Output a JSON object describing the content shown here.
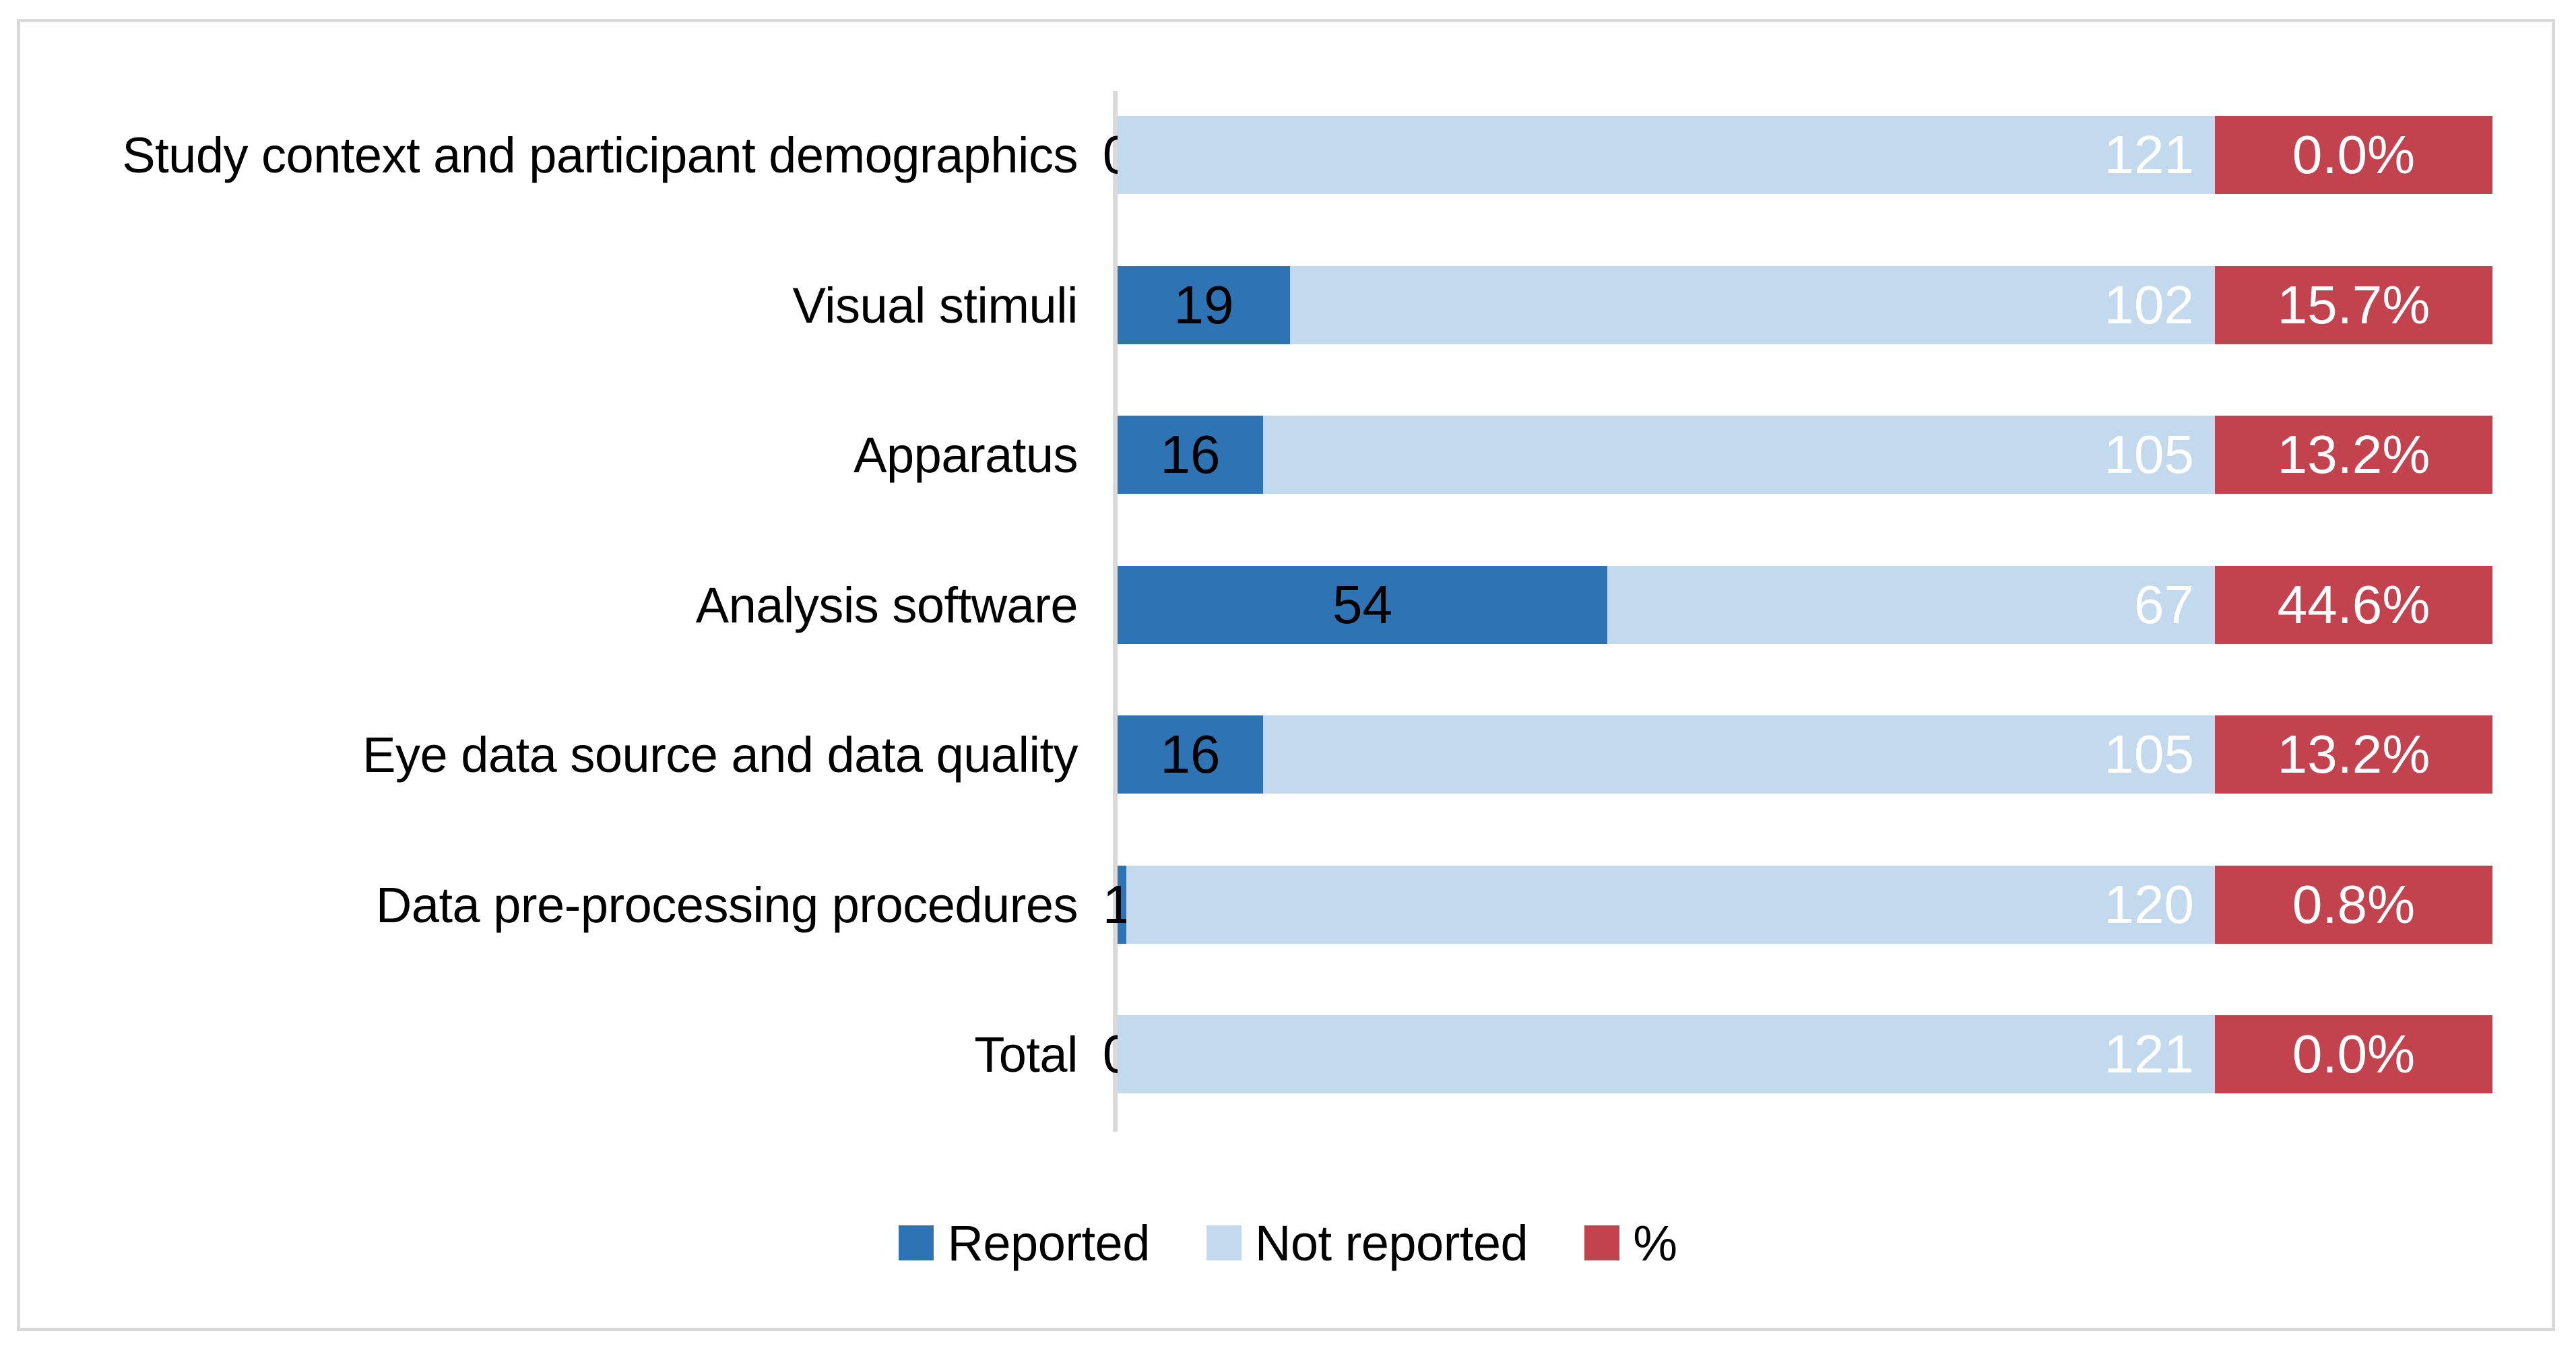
{
  "chart_data": {
    "type": "bar",
    "orientation": "horizontal",
    "stacked": true,
    "title": "",
    "categories": [
      "Study context and participant demographics",
      "Visual stimuli",
      "Apparatus",
      "Analysis software",
      "Eye data source and data quality",
      "Data pre-processing procedures",
      "Total"
    ],
    "series": [
      {
        "name": "Reported",
        "color": "#2E74B5",
        "values": [
          0,
          19,
          16,
          54,
          16,
          1,
          0
        ]
      },
      {
        "name": "Not reported",
        "color": "#C3D9EE",
        "values": [
          121,
          102,
          105,
          67,
          105,
          120,
          121
        ]
      },
      {
        "name": "%",
        "color": "#C2424E",
        "values": [
          "0.0%",
          "15.7%",
          "13.2%",
          "44.6%",
          "13.2%",
          "0.8%",
          "0.0%"
        ]
      }
    ],
    "value_axis_max": 121,
    "grid": false,
    "legend_position": "bottom",
    "axis_color": "#D9D9D9",
    "frame_color": "#D9D9D9",
    "label_color_reported": "#000000",
    "label_color_not_reported": "#FFFFFF",
    "label_color_percent": "#FFFFFF"
  }
}
